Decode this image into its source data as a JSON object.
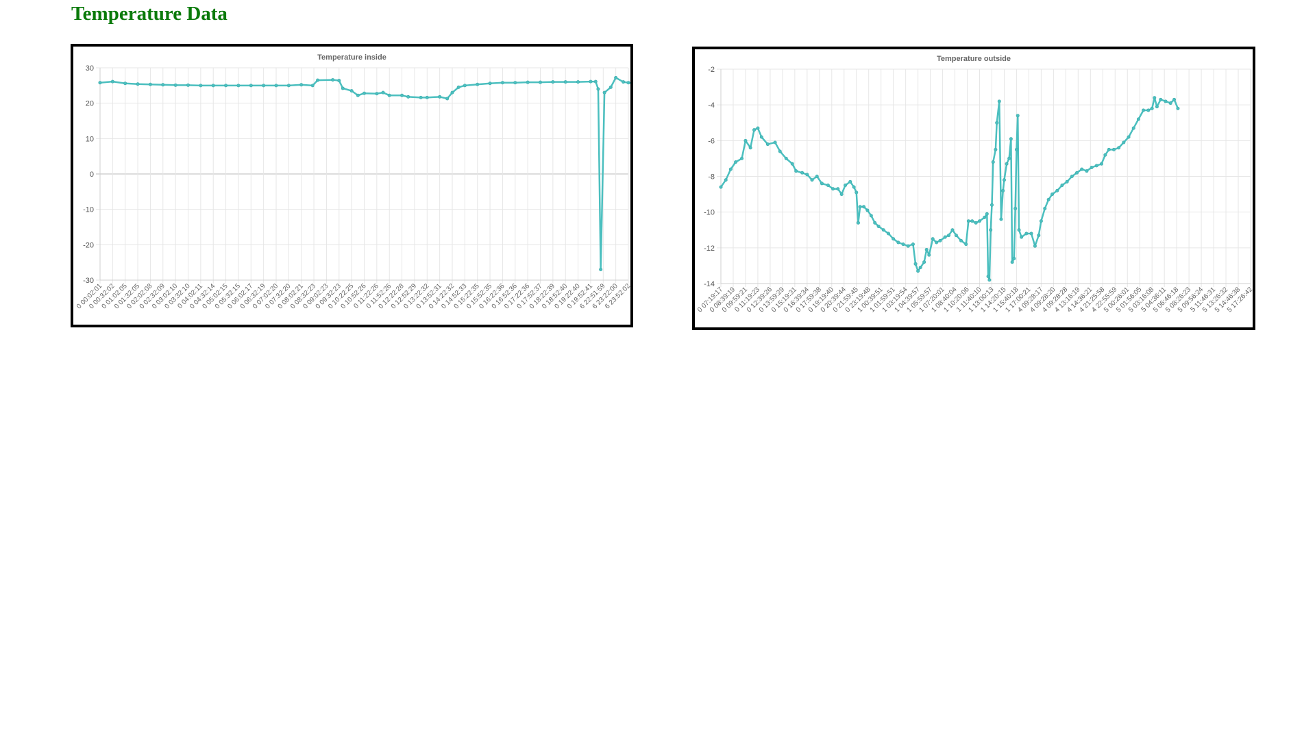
{
  "page": {
    "title": "Temperature Data"
  },
  "chart_data": [
    {
      "type": "line",
      "title": "Temperature inside",
      "ylim": [
        -30,
        30
      ],
      "yticks": [
        30,
        20,
        10,
        0,
        -10,
        -20,
        -30
      ],
      "grid": true,
      "legend": "none",
      "x_tick_labels": [
        "0 00:02:01",
        "0 00:32:02",
        "0 01:02:05",
        "0 01:32:05",
        "0 02:02:08",
        "0 02:32:09",
        "0 03:02:10",
        "0 03:32:10",
        "0 04:02:11",
        "0 04:32:14",
        "0 05:02:15",
        "0 05:32:15",
        "0 06:02:17",
        "0 06:32:19",
        "0 07:02:20",
        "0 07:32:20",
        "0 08:02:21",
        "0 08:32:23",
        "0 09:02:23",
        "0 09:32:23",
        "0 10:22:25",
        "0 10:52:26",
        "0 11:22:26",
        "0 11:52:26",
        "0 12:22:28",
        "0 12:52:29",
        "0 13:22:32",
        "0 13:52:31",
        "0 14:22:32",
        "0 14:52:33",
        "0 15:22:35",
        "0 15:52:35",
        "0 16:22:36",
        "0 16:52:36",
        "0 17:22:36",
        "0 17:52:37",
        "0 18:22:39",
        "0 18:52:40",
        "0 19:22:40",
        "0 19:52:41",
        "6 22:51:59",
        "6 23:22:00",
        "6 23:52:02"
      ],
      "series": [
        {
          "color": "#4bbfbf",
          "points": [
            [
              0,
              25.8
            ],
            [
              1,
              26.1
            ],
            [
              2,
              25.6
            ],
            [
              3,
              25.4
            ],
            [
              4,
              25.3
            ],
            [
              5,
              25.2
            ],
            [
              6,
              25.1
            ],
            [
              7,
              25.1
            ],
            [
              8,
              25.0
            ],
            [
              9,
              25.0
            ],
            [
              10,
              25.0
            ],
            [
              11,
              25.0
            ],
            [
              12,
              25.0
            ],
            [
              13,
              25.0
            ],
            [
              14,
              25.0
            ],
            [
              15,
              25.0
            ],
            [
              16,
              25.2
            ],
            [
              16.9,
              25.0
            ],
            [
              17.3,
              26.5
            ],
            [
              18.5,
              26.6
            ],
            [
              19.0,
              26.4
            ],
            [
              19.3,
              24.2
            ],
            [
              20,
              23.5
            ],
            [
              20.5,
              22.2
            ],
            [
              21,
              22.8
            ],
            [
              22,
              22.7
            ],
            [
              22.5,
              23.0
            ],
            [
              23,
              22.2
            ],
            [
              24,
              22.2
            ],
            [
              24.5,
              21.8
            ],
            [
              25.5,
              21.6
            ],
            [
              26,
              21.6
            ],
            [
              27,
              21.8
            ],
            [
              27.6,
              21.3
            ],
            [
              28,
              23.0
            ],
            [
              28.5,
              24.5
            ],
            [
              29,
              25.0
            ],
            [
              30,
              25.3
            ],
            [
              31,
              25.6
            ],
            [
              32,
              25.8
            ],
            [
              33,
              25.8
            ],
            [
              34,
              25.9
            ],
            [
              35,
              25.9
            ],
            [
              36,
              26.0
            ],
            [
              37,
              26.0
            ],
            [
              38,
              26.0
            ],
            [
              39,
              26.1
            ],
            [
              39.4,
              26.1
            ],
            [
              39.6,
              24.0
            ],
            [
              39.8,
              -27.0
            ],
            [
              40.1,
              23.0
            ],
            [
              40.6,
              24.5
            ],
            [
              41,
              27.2
            ],
            [
              41.6,
              26.0
            ],
            [
              42,
              25.8
            ],
            [
              42.5,
              25.5
            ]
          ]
        }
      ]
    },
    {
      "type": "line",
      "title": "Temperature outside",
      "ylim": [
        -14,
        -2
      ],
      "yticks": [
        -2,
        -4,
        -6,
        -8,
        -10,
        -12,
        -14
      ],
      "grid": true,
      "legend": "none",
      "x_tick_labels": [
        "0 07:19:17",
        "0 08:39:19",
        "0 09:59:21",
        "0 11:19:23",
        "0 12:39:26",
        "0 13:59:29",
        "0 15:19:31",
        "0 16:39:34",
        "0 17:59:38",
        "0 19:19:40",
        "0 20:39:44",
        "0 21:59:45",
        "0 23:19:48",
        "1 00:39:51",
        "1 01:59:51",
        "1 03:19:54",
        "1 04:39:57",
        "1 05:59:57",
        "1 07:20:01",
        "1 08:40:04",
        "1 10:20:06",
        "1 11:40:10",
        "1 13:00:13",
        "1 14:20:15",
        "1 15:40:18",
        "1 17:00:21",
        "4 09:28:17",
        "4 09:28:20",
        "4 09:28:28",
        "4 13:16:19",
        "4 14:36:21",
        "4 21:25:58",
        "4 22:55:59",
        "5 00:26:01",
        "5 01:56:05",
        "5 03:16:08",
        "5 04:36:11",
        "5 06:46:18",
        "5 08:26:23",
        "5 09:56:24",
        "5 11:46:31",
        "5 13:26:32",
        "5 14:46:38",
        "5 17:26:42"
      ],
      "series": [
        {
          "color": "#4bbfbf",
          "points": [
            [
              0,
              -8.6
            ],
            [
              0.4,
              -8.2
            ],
            [
              0.8,
              -7.6
            ],
            [
              1.2,
              -7.2
            ],
            [
              1.7,
              -7.0
            ],
            [
              2.0,
              -6.0
            ],
            [
              2.4,
              -6.4
            ],
            [
              2.7,
              -5.4
            ],
            [
              3.0,
              -5.3
            ],
            [
              3.3,
              -5.8
            ],
            [
              3.8,
              -6.2
            ],
            [
              4.4,
              -6.1
            ],
            [
              4.8,
              -6.6
            ],
            [
              5.3,
              -7.0
            ],
            [
              5.8,
              -7.3
            ],
            [
              6.1,
              -7.7
            ],
            [
              6.6,
              -7.8
            ],
            [
              7.0,
              -7.9
            ],
            [
              7.4,
              -8.2
            ],
            [
              7.8,
              -8.0
            ],
            [
              8.2,
              -8.4
            ],
            [
              8.7,
              -8.5
            ],
            [
              9.1,
              -8.7
            ],
            [
              9.5,
              -8.7
            ],
            [
              9.8,
              -9.0
            ],
            [
              10.1,
              -8.5
            ],
            [
              10.5,
              -8.3
            ],
            [
              10.8,
              -8.6
            ],
            [
              11.0,
              -8.9
            ],
            [
              11.15,
              -10.6
            ],
            [
              11.3,
              -9.7
            ],
            [
              11.6,
              -9.7
            ],
            [
              11.9,
              -9.9
            ],
            [
              12.2,
              -10.2
            ],
            [
              12.5,
              -10.6
            ],
            [
              12.8,
              -10.8
            ],
            [
              13.2,
              -11.0
            ],
            [
              13.6,
              -11.2
            ],
            [
              14.0,
              -11.5
            ],
            [
              14.4,
              -11.7
            ],
            [
              14.8,
              -11.8
            ],
            [
              15.2,
              -11.9
            ],
            [
              15.6,
              -11.8
            ],
            [
              15.8,
              -12.9
            ],
            [
              16.0,
              -13.3
            ],
            [
              16.2,
              -13.1
            ],
            [
              16.5,
              -12.8
            ],
            [
              16.7,
              -12.1
            ],
            [
              16.9,
              -12.4
            ],
            [
              17.2,
              -11.5
            ],
            [
              17.5,
              -11.7
            ],
            [
              17.8,
              -11.6
            ],
            [
              18.2,
              -11.4
            ],
            [
              18.5,
              -11.3
            ],
            [
              18.8,
              -11.0
            ],
            [
              19.1,
              -11.3
            ],
            [
              19.5,
              -11.6
            ],
            [
              19.9,
              -11.8
            ],
            [
              20.1,
              -10.5
            ],
            [
              20.4,
              -10.5
            ],
            [
              20.7,
              -10.6
            ],
            [
              21.0,
              -10.5
            ],
            [
              21.4,
              -10.3
            ],
            [
              21.6,
              -10.1
            ],
            [
              21.7,
              -13.6
            ],
            [
              21.8,
              -13.8
            ],
            [
              21.9,
              -11.0
            ],
            [
              22.0,
              -9.6
            ],
            [
              22.1,
              -7.2
            ],
            [
              22.3,
              -6.5
            ],
            [
              22.4,
              -5.0
            ],
            [
              22.6,
              -3.8
            ],
            [
              22.75,
              -10.4
            ],
            [
              22.9,
              -8.8
            ],
            [
              23.0,
              -8.2
            ],
            [
              23.2,
              -7.3
            ],
            [
              23.4,
              -7.0
            ],
            [
              23.55,
              -5.9
            ],
            [
              23.65,
              -12.8
            ],
            [
              23.8,
              -12.6
            ],
            [
              23.9,
              -9.8
            ],
            [
              24.0,
              -6.5
            ],
            [
              24.1,
              -4.6
            ],
            [
              24.2,
              -11.0
            ],
            [
              24.4,
              -11.4
            ],
            [
              24.8,
              -11.2
            ],
            [
              25.2,
              -11.2
            ],
            [
              25.5,
              -11.9
            ],
            [
              25.8,
              -11.3
            ],
            [
              26.0,
              -10.5
            ],
            [
              26.3,
              -9.8
            ],
            [
              26.6,
              -9.3
            ],
            [
              26.9,
              -9.0
            ],
            [
              27.3,
              -8.8
            ],
            [
              27.7,
              -8.5
            ],
            [
              28.1,
              -8.3
            ],
            [
              28.5,
              -8.0
            ],
            [
              28.9,
              -7.8
            ],
            [
              29.3,
              -7.6
            ],
            [
              29.7,
              -7.7
            ],
            [
              30.1,
              -7.5
            ],
            [
              30.5,
              -7.4
            ],
            [
              30.9,
              -7.3
            ],
            [
              31.2,
              -6.8
            ],
            [
              31.5,
              -6.5
            ],
            [
              31.9,
              -6.5
            ],
            [
              32.3,
              -6.4
            ],
            [
              32.7,
              -6.1
            ],
            [
              33.1,
              -5.8
            ],
            [
              33.5,
              -5.3
            ],
            [
              33.9,
              -4.8
            ],
            [
              34.3,
              -4.3
            ],
            [
              34.7,
              -4.3
            ],
            [
              35.0,
              -4.2
            ],
            [
              35.2,
              -3.6
            ],
            [
              35.4,
              -4.1
            ],
            [
              35.7,
              -3.7
            ],
            [
              36.1,
              -3.8
            ],
            [
              36.5,
              -3.9
            ],
            [
              36.8,
              -3.7
            ],
            [
              37.1,
              -4.2
            ]
          ]
        }
      ]
    }
  ]
}
